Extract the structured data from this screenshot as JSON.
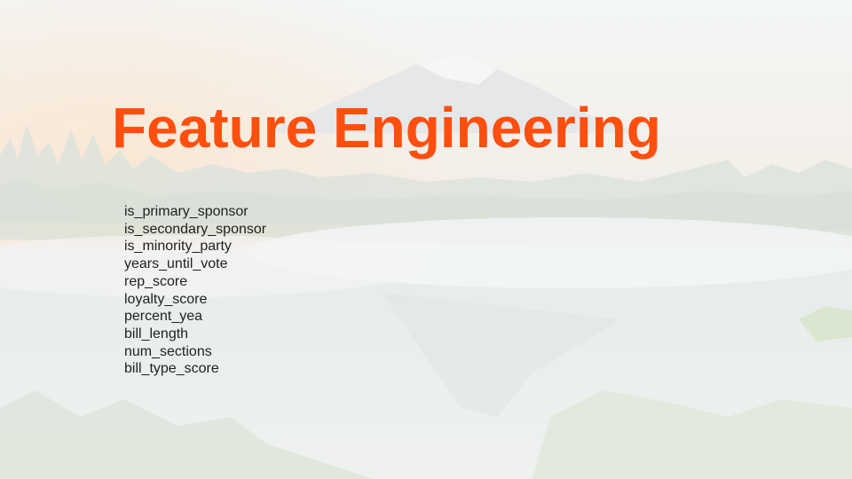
{
  "slide": {
    "title": "Feature Engineering",
    "features": [
      "is_primary_sponsor",
      "is_secondary_sponsor",
      "is_minority_party",
      "years_until_vote",
      "rep_score",
      "loyalty_score",
      "percent_yea",
      "bill_length",
      "num_sections",
      "bill_type_score"
    ]
  },
  "colors": {
    "title": "#ff4f0f",
    "body_text": "#1f1f1f"
  }
}
